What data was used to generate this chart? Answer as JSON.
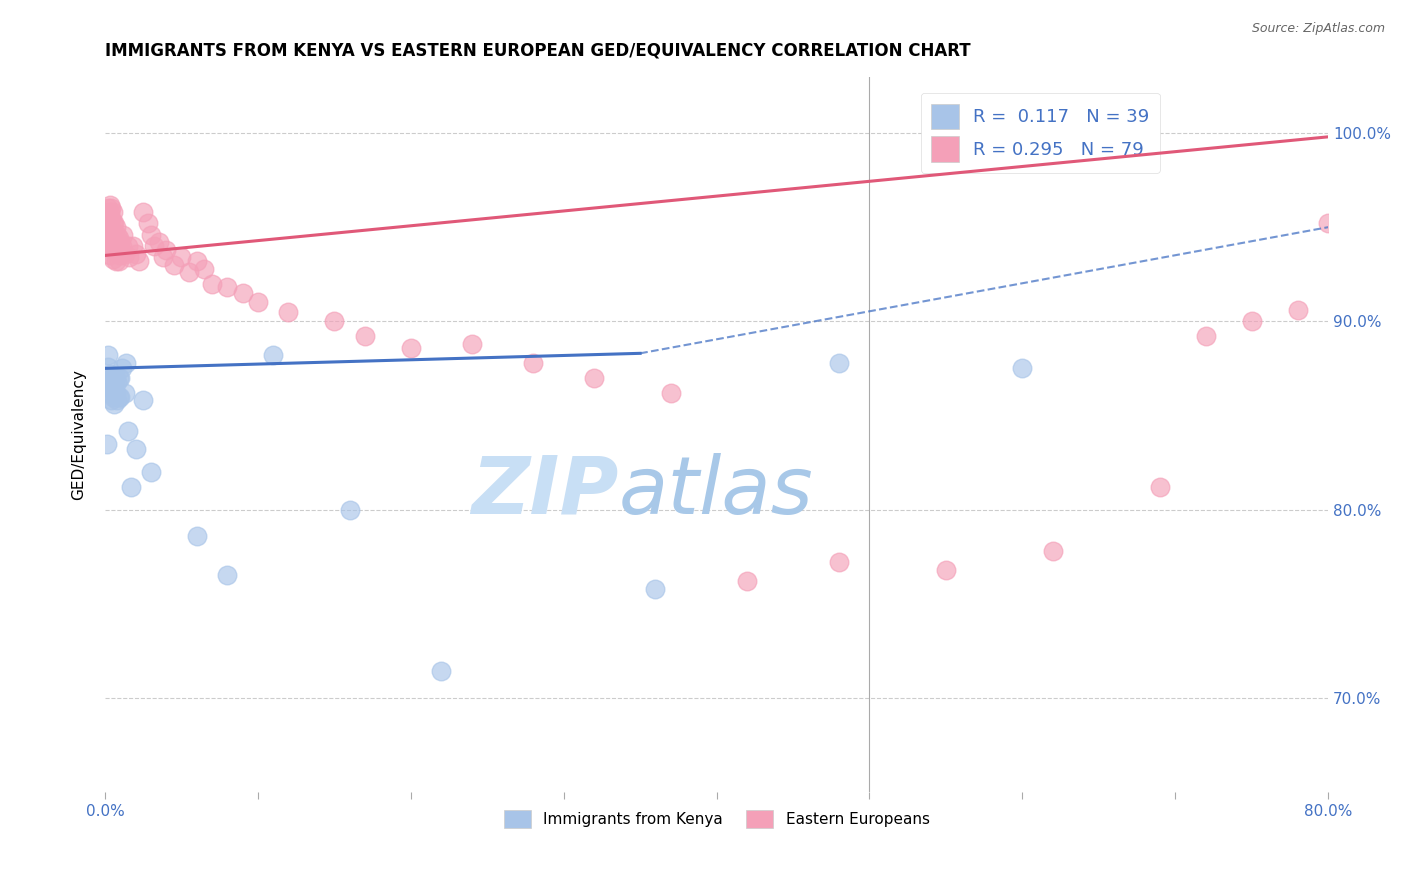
{
  "title": "IMMIGRANTS FROM KENYA VS EASTERN EUROPEAN GED/EQUIVALENCY CORRELATION CHART",
  "source": "Source: ZipAtlas.com",
  "ylabel": "GED/Equivalency",
  "legend_kenya_r": "0.117",
  "legend_kenya_n": "39",
  "legend_eastern_r": "0.295",
  "legend_eastern_n": "79",
  "color_kenya": "#a8c4e8",
  "color_eastern": "#f4a0b8",
  "color_line_kenya": "#4472c4",
  "color_line_eastern": "#e05878",
  "color_watermark_zip": "#c8dff5",
  "color_watermark_atlas": "#a8c8e8",
  "kenya_x": [
    0.001,
    0.002,
    0.002,
    0.003,
    0.003,
    0.003,
    0.004,
    0.004,
    0.004,
    0.005,
    0.005,
    0.005,
    0.006,
    0.006,
    0.006,
    0.007,
    0.007,
    0.008,
    0.008,
    0.009,
    0.009,
    0.01,
    0.01,
    0.011,
    0.013,
    0.014,
    0.015,
    0.017,
    0.02,
    0.025,
    0.03,
    0.06,
    0.08,
    0.11,
    0.16,
    0.22,
    0.36,
    0.48,
    0.6
  ],
  "kenya_y": [
    0.835,
    0.882,
    0.876,
    0.872,
    0.868,
    0.862,
    0.87,
    0.865,
    0.858,
    0.87,
    0.865,
    0.86,
    0.868,
    0.862,
    0.856,
    0.87,
    0.862,
    0.868,
    0.858,
    0.87,
    0.86,
    0.87,
    0.86,
    0.875,
    0.862,
    0.878,
    0.842,
    0.812,
    0.832,
    0.858,
    0.82,
    0.786,
    0.765,
    0.882,
    0.8,
    0.714,
    0.758,
    0.878,
    0.875
  ],
  "eastern_x": [
    0.001,
    0.001,
    0.001,
    0.002,
    0.002,
    0.002,
    0.002,
    0.002,
    0.003,
    0.003,
    0.003,
    0.003,
    0.003,
    0.003,
    0.003,
    0.004,
    0.004,
    0.004,
    0.004,
    0.005,
    0.005,
    0.005,
    0.005,
    0.005,
    0.005,
    0.006,
    0.006,
    0.006,
    0.007,
    0.007,
    0.007,
    0.007,
    0.008,
    0.008,
    0.009,
    0.009,
    0.01,
    0.01,
    0.011,
    0.012,
    0.013,
    0.015,
    0.016,
    0.018,
    0.02,
    0.022,
    0.025,
    0.028,
    0.03,
    0.032,
    0.035,
    0.038,
    0.04,
    0.045,
    0.05,
    0.055,
    0.06,
    0.065,
    0.07,
    0.08,
    0.09,
    0.1,
    0.12,
    0.15,
    0.17,
    0.2,
    0.24,
    0.28,
    0.32,
    0.37,
    0.42,
    0.48,
    0.55,
    0.62,
    0.69,
    0.72,
    0.75,
    0.78,
    0.8
  ],
  "eastern_y": [
    0.958,
    0.952,
    0.945,
    0.96,
    0.955,
    0.95,
    0.945,
    0.942,
    0.962,
    0.958,
    0.952,
    0.948,
    0.945,
    0.94,
    0.935,
    0.96,
    0.955,
    0.948,
    0.942,
    0.958,
    0.952,
    0.948,
    0.942,
    0.938,
    0.933,
    0.952,
    0.946,
    0.94,
    0.95,
    0.944,
    0.938,
    0.932,
    0.946,
    0.938,
    0.944,
    0.932,
    0.942,
    0.935,
    0.94,
    0.946,
    0.936,
    0.94,
    0.934,
    0.94,
    0.936,
    0.932,
    0.958,
    0.952,
    0.946,
    0.94,
    0.942,
    0.934,
    0.938,
    0.93,
    0.934,
    0.926,
    0.932,
    0.928,
    0.92,
    0.918,
    0.915,
    0.91,
    0.905,
    0.9,
    0.892,
    0.886,
    0.888,
    0.878,
    0.87,
    0.862,
    0.762,
    0.772,
    0.768,
    0.778,
    0.812,
    0.892,
    0.9,
    0.906,
    0.952
  ],
  "xlim": [
    0.0,
    0.8
  ],
  "ylim": [
    0.65,
    1.03
  ],
  "figsize": [
    14.06,
    8.92
  ],
  "dpi": 100
}
